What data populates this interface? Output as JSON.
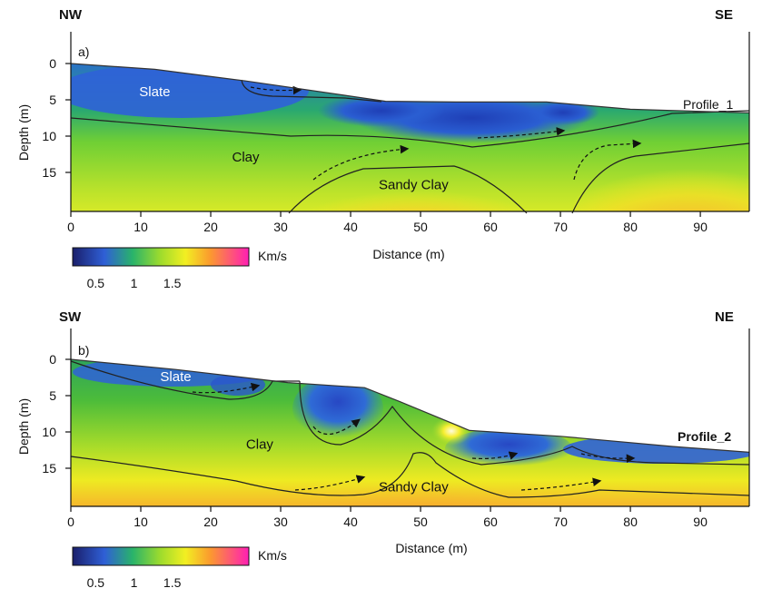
{
  "chart_data": [
    {
      "type": "heatmap",
      "panel_label": "a)",
      "corner_left": "NW",
      "corner_right": "SE",
      "profile_name": "Profile_1",
      "xlabel": "Distance (m)",
      "ylabel": "Depth (m)",
      "xlim": [
        0,
        97
      ],
      "ylim": [
        0,
        20
      ],
      "x_ticks": [
        0,
        10,
        20,
        30,
        40,
        50,
        60,
        70,
        80,
        90
      ],
      "y_ticks": [
        0,
        5,
        10,
        15
      ],
      "surface_depth": [
        [
          0,
          0
        ],
        [
          12,
          0.8
        ],
        [
          25,
          2.4
        ],
        [
          45,
          5.2
        ],
        [
          55,
          5.3
        ],
        [
          68,
          5.3
        ],
        [
          80,
          6.3
        ],
        [
          97,
          6.8
        ]
      ],
      "layers": [
        {
          "name": "Slate",
          "x": 12,
          "y": 4.5
        },
        {
          "name": "Clay",
          "x": 25,
          "y": 13.5
        },
        {
          "name": "Sandy Clay",
          "x": 49,
          "y": 17.3
        }
      ],
      "colorbar": {
        "unit": "Km/s",
        "ticks": [
          0.5,
          1,
          1.5
        ],
        "range": [
          0.2,
          2.5
        ]
      }
    },
    {
      "type": "heatmap",
      "panel_label": "b)",
      "corner_left": "SW",
      "corner_right": "NE",
      "profile_name": "Profile_2",
      "xlabel": "Distance (m)",
      "ylabel": "Depth (m)",
      "xlim": [
        0,
        97
      ],
      "ylim": [
        0,
        20
      ],
      "x_ticks": [
        0,
        10,
        20,
        30,
        40,
        50,
        60,
        70,
        80,
        90
      ],
      "y_ticks": [
        0,
        5,
        10,
        15
      ],
      "surface_depth": [
        [
          0,
          0
        ],
        [
          15,
          1.4
        ],
        [
          31,
          3.2
        ],
        [
          42,
          3.9
        ],
        [
          47,
          5.8
        ],
        [
          57,
          9.8
        ],
        [
          70,
          10.6
        ],
        [
          86,
          12.0
        ],
        [
          97,
          12.8
        ]
      ],
      "layers": [
        {
          "name": "Slate",
          "x": 15,
          "y": 3.0
        },
        {
          "name": "Clay",
          "x": 27,
          "y": 12.3
        },
        {
          "name": "Sandy Clay",
          "x": 49,
          "y": 18.2
        }
      ],
      "colorbar": {
        "unit": "Km/s",
        "ticks": [
          0.5,
          1,
          1.5
        ],
        "range": [
          0.2,
          2.5
        ]
      }
    }
  ]
}
